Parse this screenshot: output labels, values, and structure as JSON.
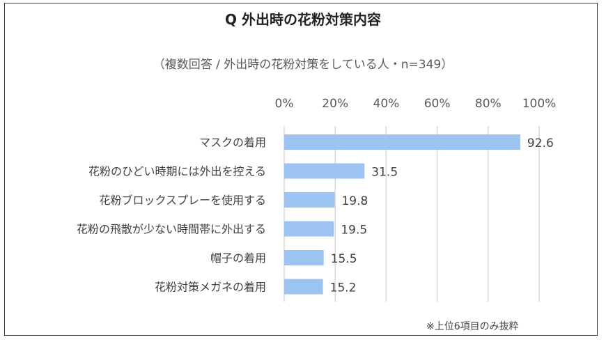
{
  "chart_data": {
    "type": "bar",
    "orientation": "horizontal",
    "title": "Q 外出時の花粉対策内容",
    "subtitle": "（複数回答 / 外出時の花粉対策をしている人・n=349）",
    "categories": [
      "マスクの着用",
      "花粉のひどい時期には外出を控える",
      "花粉ブロックスプレーを使用する",
      "花粉の飛散が少ない時間帯に外出する",
      "帽子の着用",
      "花粉対策メガネの着用"
    ],
    "values": [
      92.6,
      31.5,
      19.8,
      19.5,
      15.5,
      15.2
    ],
    "value_labels": [
      "92.6",
      "31.5",
      "19.8",
      "19.5",
      "15.5",
      "15.2"
    ],
    "xlim": [
      0,
      100
    ],
    "xticks": [
      "0%",
      "20%",
      "40%",
      "60%",
      "80%",
      "100%"
    ],
    "xtick_values": [
      0,
      20,
      40,
      60,
      80,
      100
    ],
    "axis_position": "top",
    "grid": true,
    "bar_color": "#9dc3f0",
    "grid_color": "#d9d9d9"
  },
  "footnote": "※上位6項目のみ抜粋"
}
